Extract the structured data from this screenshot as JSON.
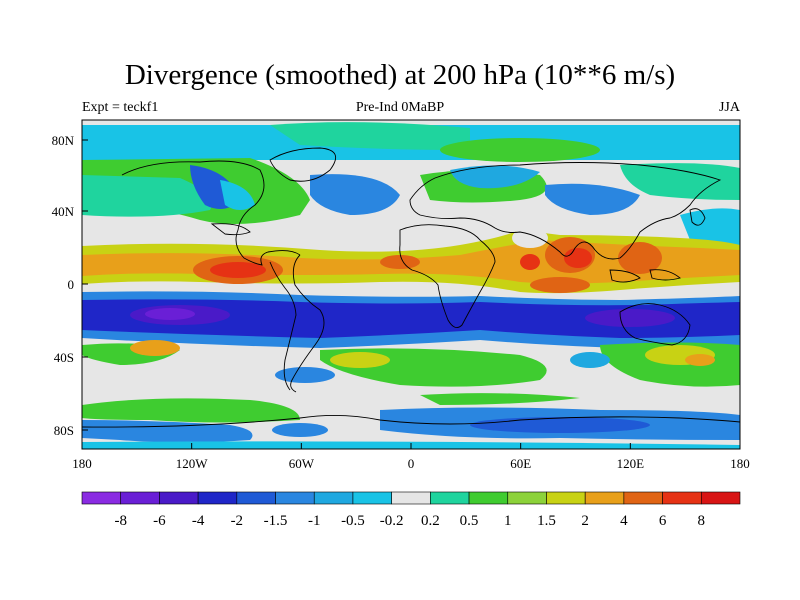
{
  "title": "Divergence (smoothed) at 200 hPa (10**6 m/s)",
  "left_subtitle": "Expt = teckf1",
  "center_subtitle": "Pre-Ind 0MaBP",
  "right_subtitle": "JJA",
  "lat_labels": [
    "80N",
    "40N",
    "0",
    "40S",
    "80S"
  ],
  "lon_labels": [
    "180",
    "120W",
    "60W",
    "0",
    "60E",
    "120E",
    "180"
  ],
  "colorbar": {
    "labels": [
      "-8",
      "-6",
      "-4",
      "-2",
      "-1.5",
      "-1",
      "-0.5",
      "-0.2",
      "0.2",
      "0.5",
      "1",
      "1.5",
      "2",
      "4",
      "6",
      "8"
    ],
    "colors": [
      "#8a2be2",
      "#6a1fd6",
      "#4a1ac8",
      "#1f26c8",
      "#1f5ad6",
      "#2a86e0",
      "#1fa8e0",
      "#19c3e6",
      "#e6e6e6",
      "#1fd49e",
      "#3fcc30",
      "#8cd23a",
      "#c8d214",
      "#e8a01a",
      "#e06414",
      "#e63214",
      "#d81414"
    ]
  }
}
